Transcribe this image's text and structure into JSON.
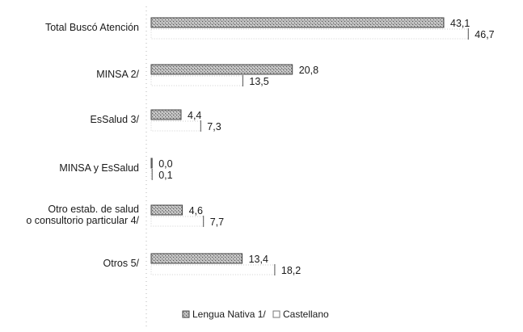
{
  "chart_data": {
    "type": "bar",
    "orientation": "horizontal",
    "categories": [
      "Total Buscó Atención",
      "MINSA 2/",
      "EsSalud 3/",
      "MINSA y EsSalud",
      "Otro estab. de salud o consultorio particular 4/",
      "Otros 5/"
    ],
    "category_lines": [
      [
        "Total Buscó Atención"
      ],
      [
        "MINSA 2/"
      ],
      [
        "EsSalud 3/"
      ],
      [
        "MINSA y EsSalud"
      ],
      [
        "Otro estab. de salud",
        "o consultorio particular 4/"
      ],
      [
        "Otros 5/"
      ]
    ],
    "series": [
      {
        "name": "Lengua Nativa 1/",
        "values": [
          43.1,
          20.8,
          4.4,
          0.0,
          4.6,
          13.4
        ],
        "labels": [
          "43,1",
          "20,8",
          "4,4",
          "0,0",
          "4,6",
          "13,4"
        ],
        "fill": "#8c8c8c"
      },
      {
        "name": "Castellano",
        "values": [
          46.7,
          13.5,
          7.3,
          0.1,
          7.7,
          18.2
        ],
        "labels": [
          "46,7",
          "13,5",
          "7,3",
          "0,1",
          "7,7",
          "18,2"
        ],
        "fill": "#ffffff"
      }
    ],
    "xlim": [
      0,
      50
    ],
    "grid": false,
    "legend_position": "bottom"
  }
}
